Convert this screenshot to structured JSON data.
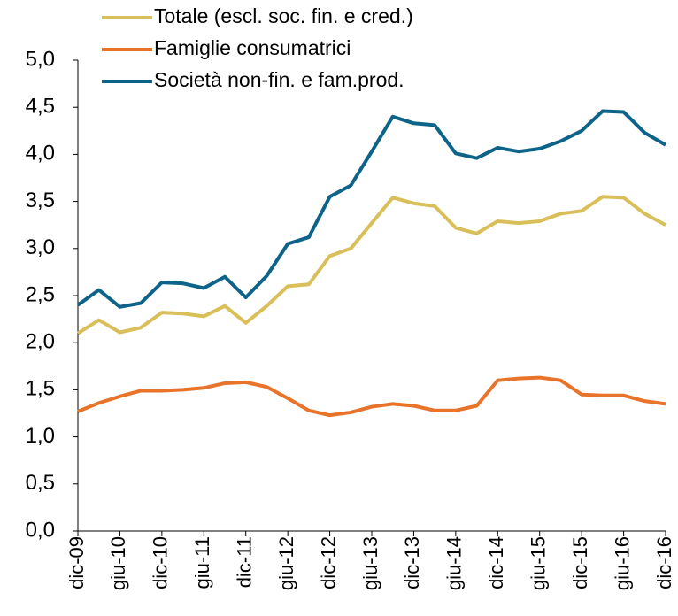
{
  "chart_data": {
    "type": "line",
    "categories": [
      "dic-09",
      null,
      "giu-10",
      null,
      "dic-10",
      null,
      "giu-11",
      null,
      "dic-11",
      null,
      "giu-12",
      null,
      "dic-12",
      null,
      "giu-13",
      null,
      "dic-13",
      null,
      "giu-14",
      null,
      "dic-14",
      null,
      "giu-15",
      null,
      "dic-15",
      null,
      "giu-16",
      null,
      "dic-16"
    ],
    "series": [
      {
        "name": "Totale (escl. soc. fin. e cred.)",
        "color": "#d9bf5a",
        "values": [
          2.1,
          2.24,
          2.11,
          2.16,
          2.32,
          2.31,
          2.28,
          2.39,
          2.21,
          2.39,
          2.6,
          2.62,
          2.92,
          3.0,
          3.27,
          3.54,
          3.48,
          3.45,
          3.22,
          3.16,
          3.29,
          3.27,
          3.29,
          3.37,
          3.4,
          3.55,
          3.54,
          3.37,
          3.25
        ]
      },
      {
        "name": "Famiglie consumatrici",
        "color": "#e8732a",
        "values": [
          1.27,
          1.36,
          1.43,
          1.49,
          1.49,
          1.5,
          1.52,
          1.57,
          1.58,
          1.53,
          1.41,
          1.28,
          1.23,
          1.26,
          1.32,
          1.35,
          1.33,
          1.28,
          1.28,
          1.33,
          1.6,
          1.62,
          1.63,
          1.6,
          1.45,
          1.44,
          1.44,
          1.38,
          1.35
        ]
      },
      {
        "name": "Società non-fin. e fam.prod.",
        "color": "#0e6389",
        "values": [
          2.4,
          2.56,
          2.38,
          2.42,
          2.64,
          2.63,
          2.58,
          2.7,
          2.48,
          2.71,
          3.05,
          3.12,
          3.55,
          3.67,
          4.03,
          4.4,
          4.33,
          4.31,
          4.01,
          3.96,
          4.07,
          4.03,
          4.06,
          4.14,
          4.25,
          4.46,
          4.45,
          4.23,
          4.1
        ]
      }
    ],
    "ylim": [
      0,
      5
    ],
    "yticks": [
      {
        "value": 0,
        "label": "0,0"
      },
      {
        "value": 0.5,
        "label": "0,5"
      },
      {
        "value": 1,
        "label": "1,0"
      },
      {
        "value": 1.5,
        "label": "1,5"
      },
      {
        "value": 2,
        "label": "2,0"
      },
      {
        "value": 2.5,
        "label": "2,5"
      },
      {
        "value": 3,
        "label": "3,0"
      },
      {
        "value": 3.5,
        "label": "3,5"
      },
      {
        "value": 4,
        "label": "4,0"
      },
      {
        "value": 4.5,
        "label": "4,5"
      },
      {
        "value": 5,
        "label": "5,0"
      }
    ],
    "grid": false,
    "legend": "top"
  }
}
